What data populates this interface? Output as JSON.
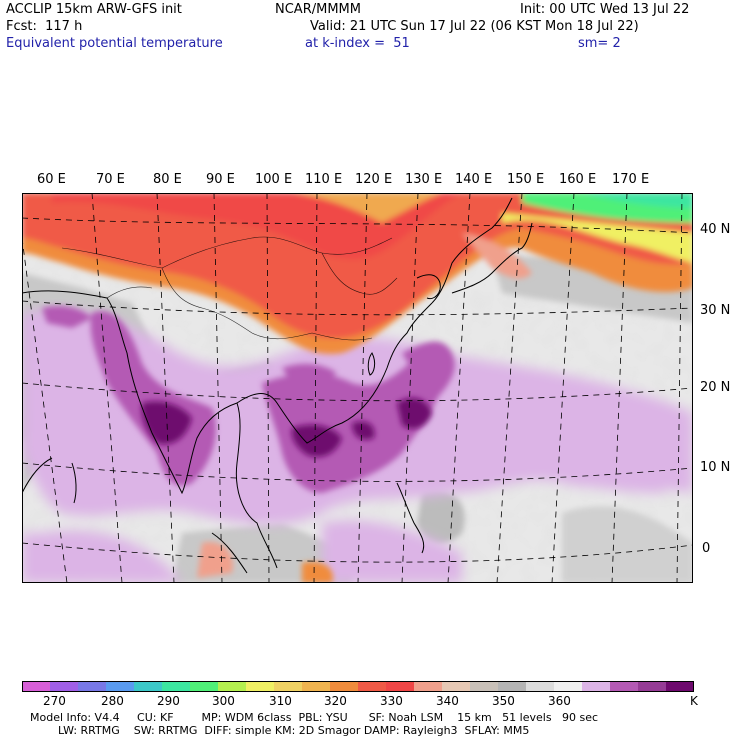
{
  "header": {
    "model": "ACCLIP 15km ARW-GFS init",
    "org": "NCAR/MMMM",
    "init": "Init: 00 UTC Wed 13 Jul 22",
    "fcst": "Fcst:  117 h",
    "valid": "Valid: 21 UTC Sun 17 Jul 22 (06 KST Mon 18 Jul 22)",
    "field": "Equivalent potential temperature",
    "level": "at k-index =  51",
    "smooth": "sm= 2"
  },
  "map": {
    "region": "East and South Asia, western Pacific",
    "lon_labels": [
      "60 E",
      "70 E",
      "80 E",
      "90 E",
      "100 E",
      "110 E",
      "120 E",
      "130 E",
      "140 E",
      "150 E",
      "160 E",
      "170 E"
    ],
    "lat_labels": [
      "40 N",
      "30 N",
      "20 N",
      "10 N",
      "0"
    ]
  },
  "colorbar": {
    "colors": [
      "#d75fd7",
      "#a05fe6",
      "#7878e6",
      "#5a9bf0",
      "#3cc8c8",
      "#3ce6a0",
      "#50f078",
      "#b4f050",
      "#f0f064",
      "#f0d264",
      "#f0b450",
      "#f08c3c",
      "#f05a46",
      "#f04646",
      "#f0a08c",
      "#e6c8b4",
      "#c8c0b8",
      "#b4b4b4",
      "#dcdcdc",
      "#f0f0f0",
      "#dcb4e6",
      "#b45ab4",
      "#963c96",
      "#6e0a6e"
    ],
    "labels": [
      "270",
      "280",
      "290",
      "300",
      "310",
      "320",
      "330",
      "340",
      "350",
      "360",
      "K"
    ],
    "unit": "K"
  },
  "footer": {
    "line1": "Model Info: V4.4     CU: KF        MP: WDM 6class  PBL: YSU      SF: Noah LSM    15 km   51 levels   90 sec",
    "line2": "        LW: RRTMG    SW: RRTMG  DIFF: simple KM: 2D Smagor DAMP: Rayleigh3  SFLAY: MM5"
  }
}
